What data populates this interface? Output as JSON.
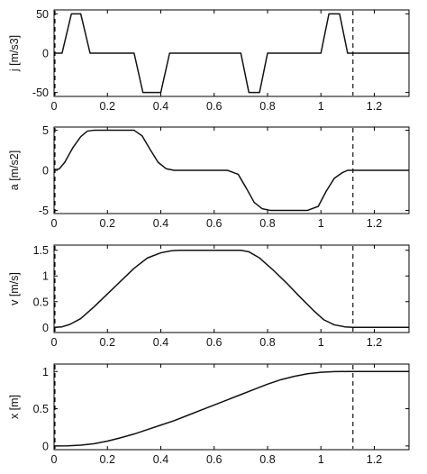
{
  "chart_data": [
    {
      "type": "line",
      "ylabel": "j [m/s3]",
      "xlabel": "",
      "xlim": [
        0,
        1.33
      ],
      "ylim": [
        -55,
        55
      ],
      "xticks": [
        0,
        0.2,
        0.4,
        0.6,
        0.8,
        1,
        1.2
      ],
      "xtick_labels": [
        "0",
        "0.2",
        "0.4",
        "0.6",
        "0.8",
        "1",
        "1.2"
      ],
      "yticks": [
        -50,
        0,
        50
      ],
      "ytick_labels": [
        "-50",
        "0",
        "50"
      ],
      "grid": false,
      "series": [
        {
          "x": [
            0,
            0.03,
            0.065,
            0.1,
            0.135,
            0.3,
            0.333,
            0.4,
            0.433,
            0.6,
            0.7,
            0.73,
            0.77,
            0.8,
            1.0,
            1.03,
            1.07,
            1.1,
            1.33
          ],
          "y": [
            0,
            0,
            50,
            50,
            0,
            0,
            -50,
            -50,
            0,
            0,
            0,
            -50,
            -50,
            0,
            0,
            50,
            50,
            0,
            0
          ]
        }
      ],
      "vlines": [
        0,
        1.12
      ]
    },
    {
      "type": "line",
      "ylabel": "a [m/s2]",
      "xlabel": "",
      "xlim": [
        0,
        1.33
      ],
      "ylim": [
        -5.4,
        5.4
      ],
      "xticks": [
        0,
        0.2,
        0.4,
        0.6,
        0.8,
        1,
        1.2
      ],
      "xtick_labels": [
        "0",
        "0.2",
        "0.4",
        "0.6",
        "0.8",
        "1",
        "1.2"
      ],
      "yticks": [
        -5,
        0,
        5
      ],
      "ytick_labels": [
        "-5",
        "0",
        "5"
      ],
      "grid": false,
      "series": [
        {
          "x": [
            0,
            0.02,
            0.04,
            0.07,
            0.1,
            0.125,
            0.15,
            0.3,
            0.33,
            0.36,
            0.39,
            0.42,
            0.45,
            0.65,
            0.69,
            0.72,
            0.75,
            0.78,
            0.81,
            0.95,
            0.99,
            1.02,
            1.05,
            1.08,
            1.1,
            1.33
          ],
          "y": [
            0,
            0.2,
            1.0,
            2.8,
            4.2,
            4.9,
            5,
            5,
            4.3,
            2.6,
            1.0,
            0.2,
            0,
            0,
            -0.5,
            -2.2,
            -4.0,
            -4.8,
            -5,
            -5,
            -4.5,
            -2.6,
            -1.0,
            -0.3,
            0,
            0
          ]
        }
      ],
      "vlines": [
        0,
        1.12
      ]
    },
    {
      "type": "line",
      "ylabel": "v [m/s]",
      "xlabel": "",
      "xlim": [
        0,
        1.33
      ],
      "ylim": [
        -0.1,
        1.6
      ],
      "xticks": [
        0,
        0.2,
        0.4,
        0.6,
        0.8,
        1,
        1.2
      ],
      "xtick_labels": [
        "0",
        "0.2",
        "0.4",
        "0.6",
        "0.8",
        "1",
        "1.2"
      ],
      "yticks": [
        0,
        0.5,
        1,
        1.5
      ],
      "ytick_labels": [
        "0",
        "0.5",
        "1",
        "1.5"
      ],
      "grid": false,
      "series": [
        {
          "x": [
            0,
            0.03,
            0.06,
            0.1,
            0.15,
            0.2,
            0.25,
            0.3,
            0.35,
            0.4,
            0.44,
            0.47,
            0.5,
            0.6,
            0.7,
            0.73,
            0.77,
            0.82,
            0.87,
            0.92,
            0.97,
            1.01,
            1.05,
            1.09,
            1.12,
            1.33
          ],
          "y": [
            0,
            0.01,
            0.06,
            0.17,
            0.4,
            0.65,
            0.9,
            1.15,
            1.35,
            1.45,
            1.49,
            1.5,
            1.5,
            1.5,
            1.5,
            1.47,
            1.35,
            1.12,
            0.87,
            0.6,
            0.34,
            0.15,
            0.05,
            0.01,
            0,
            0
          ]
        }
      ],
      "vlines": [
        0,
        1.12
      ]
    },
    {
      "type": "line",
      "ylabel": "x [m]",
      "xlabel": "",
      "xlim": [
        0,
        1.33
      ],
      "ylim": [
        -0.05,
        1.1
      ],
      "xticks": [
        0,
        0.2,
        0.4,
        0.6,
        0.8,
        1,
        1.2
      ],
      "xtick_labels": [
        "0",
        "0.2",
        "0.4",
        "0.6",
        "0.8",
        "1",
        "1.2"
      ],
      "yticks": [
        0,
        0.5,
        1
      ],
      "ytick_labels": [
        "0",
        "0.5",
        "1"
      ],
      "grid": false,
      "series": [
        {
          "x": [
            0,
            0.05,
            0.1,
            0.15,
            0.2,
            0.25,
            0.3,
            0.35,
            0.4,
            0.45,
            0.5,
            0.55,
            0.6,
            0.65,
            0.7,
            0.75,
            0.8,
            0.85,
            0.9,
            0.95,
            1.0,
            1.05,
            1.1,
            1.15,
            1.33
          ],
          "y": [
            0,
            0.001,
            0.01,
            0.03,
            0.065,
            0.11,
            0.16,
            0.22,
            0.28,
            0.34,
            0.41,
            0.48,
            0.55,
            0.62,
            0.69,
            0.76,
            0.83,
            0.89,
            0.935,
            0.97,
            0.99,
            0.998,
            1.0,
            1.0,
            1.0
          ]
        }
      ],
      "vlines": [
        0,
        1.12
      ]
    }
  ]
}
